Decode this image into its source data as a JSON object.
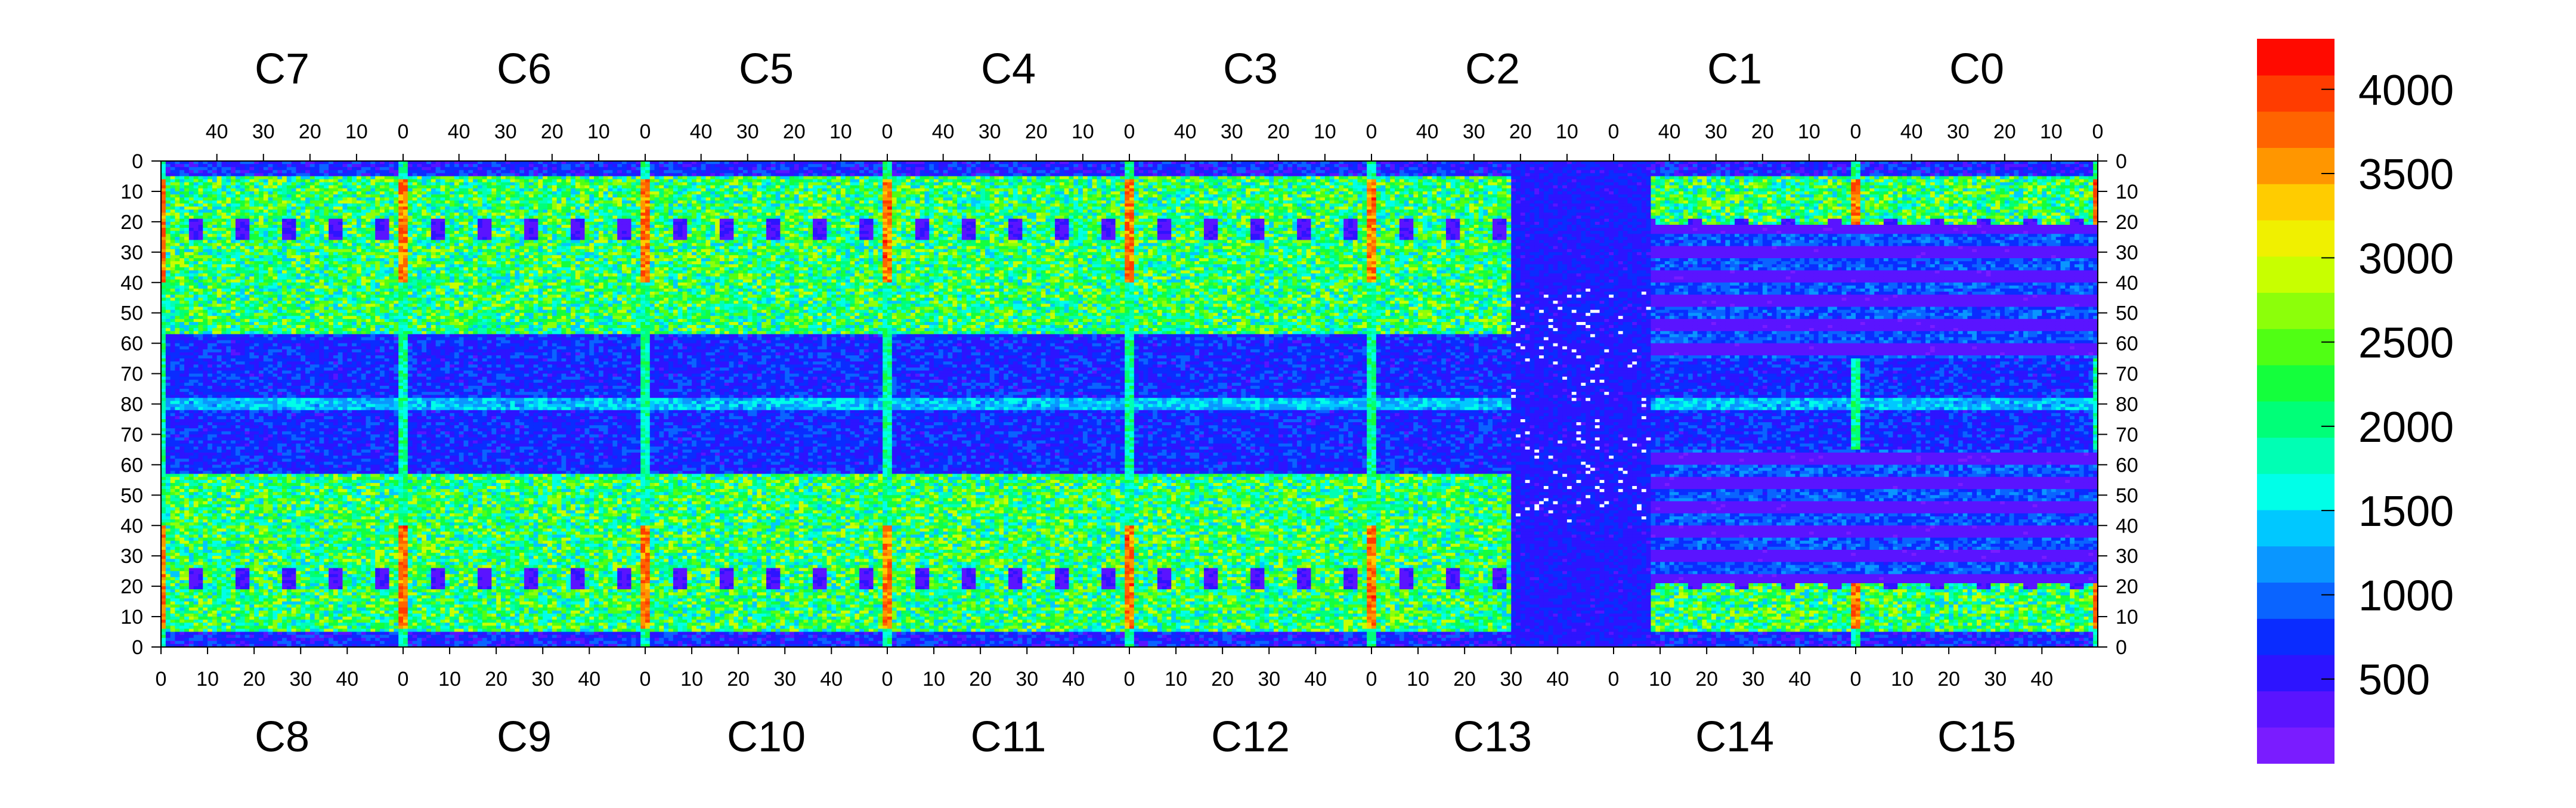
{
  "chart_data": {
    "type": "heatmap",
    "title": "",
    "xlabel": "",
    "ylabel": "",
    "top_chip_labels": [
      "C7",
      "C6",
      "C5",
      "C4",
      "C3",
      "C2",
      "C1",
      "C0"
    ],
    "bottom_chip_labels": [
      "C8",
      "C9",
      "C10",
      "C11",
      "C12",
      "C13",
      "C14",
      "C15"
    ],
    "top_tick_labels": [
      "40",
      "30",
      "20",
      "10",
      "0"
    ],
    "bottom_tick_labels": [
      "0",
      "10",
      "20",
      "30",
      "40"
    ],
    "left_axis_labels": [
      "0",
      "10",
      "20",
      "30",
      "40",
      "50",
      "60",
      "70",
      "80",
      "70",
      "60",
      "50",
      "40",
      "30",
      "20",
      "10",
      "0"
    ],
    "right_axis_labels": [
      "0",
      "10",
      "20",
      "30",
      "40",
      "50",
      "60",
      "70",
      "80",
      "70",
      "60",
      "50",
      "40",
      "30",
      "20",
      "10",
      "0"
    ],
    "chip_columns": 52,
    "rows_per_half": 80,
    "colorbar": {
      "min": 0,
      "max": 4300,
      "ticks": [
        500,
        1000,
        1500,
        2000,
        2500,
        3000,
        3500,
        4000
      ],
      "tick_labels": [
        "500",
        "1000",
        "1500",
        "2000",
        "2500",
        "3000",
        "3500",
        "4000"
      ],
      "colors": [
        "#7a1cff",
        "#5a14ff",
        "#2d14ff",
        "#0a2cff",
        "#0a64ff",
        "#0a96ff",
        "#00c8ff",
        "#00ffe8",
        "#00ffb4",
        "#00ff78",
        "#14ff3c",
        "#50ff14",
        "#8cff0a",
        "#c8ff00",
        "#f0f000",
        "#ffcc00",
        "#ff9600",
        "#ff6400",
        "#ff3c00",
        "#ff0a00"
      ]
    },
    "approximate_levels": {
      "dead_region_columns_C13_C14": 600,
      "active_region": 2200,
      "column_boundary_strips": 3900,
      "dark_square_pads": 400,
      "row80_boundary": 1300
    }
  }
}
